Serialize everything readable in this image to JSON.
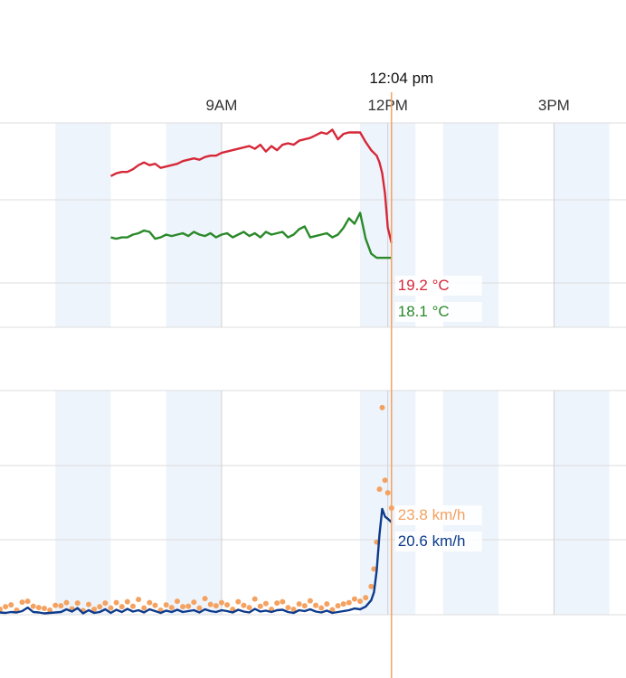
{
  "cursor": {
    "time_label": "12:04 pm",
    "hour": 12.067,
    "color": "#f4a261"
  },
  "chart_data": [
    {
      "type": "line",
      "x_unit": "hour of day",
      "xlim": [
        5.0,
        16.3
      ],
      "x_ticks": [
        {
          "x": 9,
          "label": "9AM"
        },
        {
          "x": 12,
          "label": "12PM"
        },
        {
          "x": 15,
          "label": "3PM"
        }
      ],
      "shaded_bands": [
        [
          6.0,
          7.0
        ],
        [
          8.0,
          9.0
        ],
        [
          11.5,
          12.5
        ],
        [
          13.0,
          14.0
        ],
        [
          15.0,
          16.0
        ]
      ],
      "grid": true,
      "series": [
        {
          "color": "#d62839",
          "readout": "19.2 °C",
          "x": [
            7.0,
            7.1,
            7.2,
            7.3,
            7.4,
            7.5,
            7.6,
            7.7,
            7.8,
            7.9,
            8.0,
            8.1,
            8.2,
            8.3,
            8.4,
            8.5,
            8.6,
            8.7,
            8.8,
            8.9,
            9.0,
            9.1,
            9.2,
            9.3,
            9.4,
            9.5,
            9.6,
            9.7,
            9.8,
            9.9,
            10.0,
            10.1,
            10.2,
            10.3,
            10.4,
            10.5,
            10.6,
            10.7,
            10.8,
            10.9,
            11.0,
            11.1,
            11.2,
            11.3,
            11.4,
            11.5,
            11.6,
            11.7,
            11.8,
            11.85,
            11.9,
            11.95,
            12.0,
            12.067
          ],
          "y": [
            24.1,
            24.3,
            24.4,
            24.4,
            24.6,
            24.9,
            25.1,
            24.9,
            25.0,
            24.7,
            24.8,
            24.9,
            25.0,
            25.2,
            25.3,
            25.4,
            25.3,
            25.5,
            25.6,
            25.6,
            25.8,
            25.9,
            26.0,
            26.1,
            26.2,
            26.3,
            26.1,
            26.4,
            25.9,
            26.3,
            26.0,
            26.4,
            26.5,
            26.4,
            26.7,
            26.8,
            26.9,
            27.1,
            27.3,
            27.2,
            27.5,
            26.8,
            27.2,
            27.3,
            27.3,
            27.3,
            26.6,
            26.0,
            25.6,
            25.1,
            24.3,
            22.8,
            20.3,
            19.2
          ]
        },
        {
          "color": "#2a8a2a",
          "readout": "18.1 °C",
          "x": [
            7.0,
            7.1,
            7.2,
            7.3,
            7.4,
            7.5,
            7.6,
            7.7,
            7.8,
            7.9,
            8.0,
            8.1,
            8.2,
            8.3,
            8.4,
            8.5,
            8.6,
            8.7,
            8.8,
            8.9,
            9.0,
            9.1,
            9.2,
            9.3,
            9.4,
            9.5,
            9.6,
            9.7,
            9.8,
            9.9,
            10.0,
            10.1,
            10.2,
            10.3,
            10.4,
            10.5,
            10.6,
            10.7,
            10.8,
            10.9,
            11.0,
            11.1,
            11.2,
            11.3,
            11.4,
            11.5,
            11.6,
            11.7,
            11.8,
            11.85,
            11.9,
            11.95,
            12.0,
            12.067
          ],
          "y": [
            19.6,
            19.5,
            19.6,
            19.6,
            19.8,
            19.9,
            20.1,
            20.0,
            19.5,
            19.6,
            19.8,
            19.7,
            19.8,
            19.9,
            19.7,
            20.0,
            19.8,
            19.7,
            19.9,
            19.6,
            19.8,
            19.9,
            19.6,
            19.8,
            20.0,
            19.7,
            19.9,
            19.6,
            20.0,
            19.8,
            19.9,
            20.0,
            19.6,
            19.8,
            20.2,
            20.4,
            19.6,
            19.7,
            19.8,
            19.9,
            19.6,
            19.8,
            20.3,
            21.0,
            20.6,
            21.4,
            19.5,
            18.4,
            18.1,
            18.1,
            18.1,
            18.1,
            18.1,
            18.1
          ]
        }
      ]
    },
    {
      "type": "line",
      "x_unit": "hour of day",
      "xlim": [
        5.0,
        16.3
      ],
      "shaded_bands": [
        [
          6.0,
          7.0
        ],
        [
          8.0,
          9.0
        ],
        [
          11.5,
          12.5
        ],
        [
          13.0,
          14.0
        ],
        [
          15.0,
          16.0
        ]
      ],
      "grid": true,
      "series": [
        {
          "style": "line",
          "color": "#0d3b8c",
          "readout": "20.6 km/h",
          "x": [
            5.0,
            5.1,
            5.2,
            5.3,
            5.4,
            5.5,
            5.6,
            5.7,
            5.8,
            5.9,
            6.0,
            6.1,
            6.2,
            6.3,
            6.4,
            6.5,
            6.6,
            6.7,
            6.8,
            6.9,
            7.0,
            7.1,
            7.2,
            7.3,
            7.4,
            7.5,
            7.6,
            7.7,
            7.8,
            7.9,
            8.0,
            8.1,
            8.2,
            8.3,
            8.4,
            8.5,
            8.6,
            8.7,
            8.8,
            8.9,
            9.0,
            9.1,
            9.2,
            9.3,
            9.4,
            9.5,
            9.6,
            9.7,
            9.8,
            9.9,
            10.0,
            10.1,
            10.2,
            10.3,
            10.4,
            10.5,
            10.6,
            10.7,
            10.8,
            10.9,
            11.0,
            11.1,
            11.2,
            11.3,
            11.4,
            11.5,
            11.6,
            11.7,
            11.75,
            11.8,
            11.85,
            11.9,
            11.95,
            12.0,
            12.067
          ],
          "y": [
            0.5,
            0.4,
            0.6,
            0.5,
            0.8,
            1.6,
            0.6,
            0.5,
            0.3,
            0.4,
            0.5,
            0.6,
            1.2,
            0.7,
            1.5,
            0.3,
            1.0,
            0.4,
            0.6,
            1.2,
            0.4,
            1.1,
            0.6,
            1.3,
            0.7,
            1.0,
            0.5,
            1.2,
            0.8,
            0.4,
            0.9,
            0.6,
            1.1,
            0.6,
            0.8,
            1.0,
            0.5,
            1.2,
            0.8,
            0.6,
            1.0,
            0.8,
            0.5,
            1.1,
            0.7,
            0.5,
            1.3,
            0.7,
            0.9,
            0.6,
            1.0,
            1.1,
            0.6,
            0.4,
            1.0,
            0.8,
            1.2,
            0.7,
            0.5,
            0.9,
            0.4,
            0.6,
            0.8,
            1.0,
            1.4,
            1.2,
            1.8,
            3.2,
            5.0,
            9.8,
            17.9,
            23.6,
            21.9,
            21.4,
            20.6
          ]
        },
        {
          "style": "dots",
          "color": "#f4a261",
          "readout": "23.8 km/h",
          "x": [
            5.0,
            5.1,
            5.2,
            5.3,
            5.4,
            5.5,
            5.6,
            5.7,
            5.8,
            5.9,
            6.0,
            6.1,
            6.2,
            6.3,
            6.4,
            6.5,
            6.6,
            6.7,
            6.8,
            6.9,
            7.0,
            7.1,
            7.2,
            7.3,
            7.4,
            7.5,
            7.6,
            7.7,
            7.8,
            7.9,
            8.0,
            8.1,
            8.2,
            8.3,
            8.4,
            8.5,
            8.6,
            8.7,
            8.8,
            8.9,
            9.0,
            9.1,
            9.2,
            9.3,
            9.4,
            9.5,
            9.6,
            9.7,
            9.8,
            9.9,
            10.0,
            10.1,
            10.2,
            10.3,
            10.4,
            10.5,
            10.6,
            10.7,
            10.8,
            10.9,
            11.0,
            11.1,
            11.2,
            11.3,
            11.4,
            11.5,
            11.6,
            11.7,
            11.75,
            11.8,
            11.85,
            11.9,
            11.95,
            12.0,
            12.067
          ],
          "y": [
            1.2,
            1.8,
            2.2,
            1.0,
            2.8,
            3.0,
            1.9,
            1.6,
            1.4,
            1.0,
            2.1,
            2.0,
            2.7,
            1.3,
            2.6,
            0.9,
            2.3,
            1.2,
            1.8,
            2.6,
            1.5,
            2.7,
            1.8,
            2.9,
            1.9,
            3.4,
            1.5,
            2.7,
            2.1,
            1.0,
            2.2,
            1.6,
            3.0,
            1.8,
            1.9,
            2.8,
            1.5,
            3.6,
            2.3,
            2.0,
            2.7,
            2.2,
            1.2,
            2.9,
            2.1,
            1.6,
            3.5,
            1.9,
            2.5,
            1.2,
            2.6,
            2.9,
            1.6,
            1.2,
            2.4,
            2.0,
            3.1,
            2.1,
            1.5,
            2.4,
            1.1,
            2.0,
            2.4,
            2.7,
            3.5,
            3.0,
            3.8,
            6.3,
            10.2,
            16.2,
            28.0,
            46.2,
            30.0,
            27.2,
            23.8
          ]
        }
      ]
    }
  ]
}
